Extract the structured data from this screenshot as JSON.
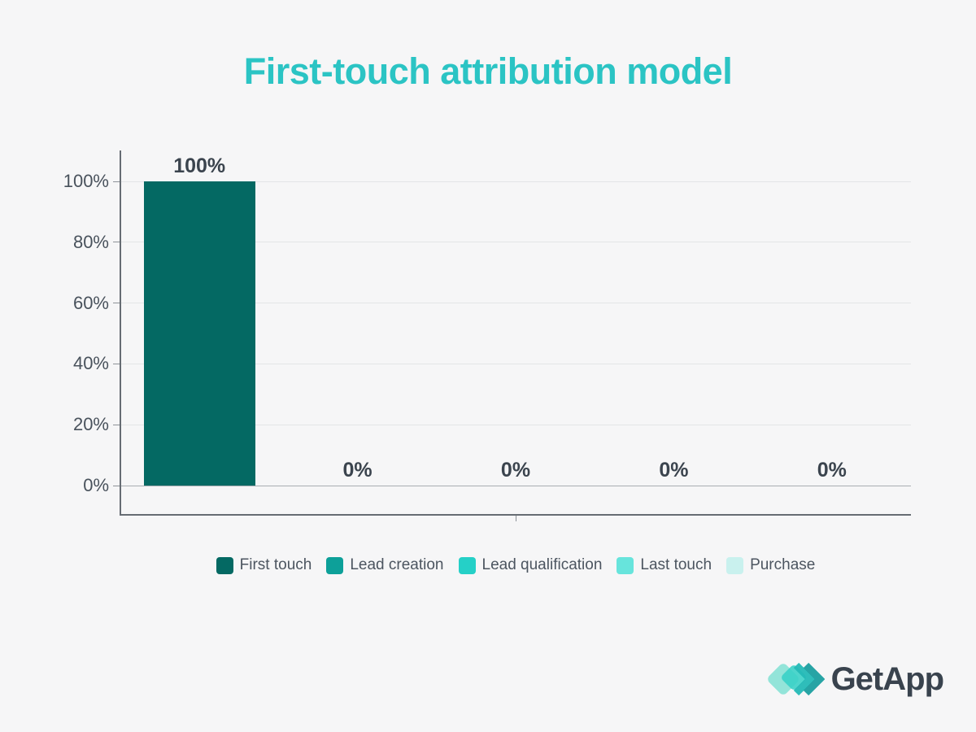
{
  "page": {
    "background": "#f6f6f7"
  },
  "header": {
    "title": "First-touch attribution model",
    "title_color": "#2bc4c4"
  },
  "chart_data": {
    "type": "bar",
    "title": "First-touch attribution model",
    "categories": [
      "First touch",
      "Lead creation",
      "Lead qualification",
      "Last touch",
      "Purchase"
    ],
    "values": [
      100,
      0,
      0,
      0,
      0
    ],
    "value_labels": [
      "100%",
      "0%",
      "0%",
      "0%",
      "0%"
    ],
    "series_colors": [
      "#046963",
      "#0da099",
      "#25d0c7",
      "#67e4dc",
      "#c9f1ee"
    ],
    "y_ticks": [
      {
        "value": 0,
        "label": "0%"
      },
      {
        "value": 20,
        "label": "20%"
      },
      {
        "value": 40,
        "label": "40%"
      },
      {
        "value": 60,
        "label": "60%"
      },
      {
        "value": 80,
        "label": "80%"
      },
      {
        "value": 100,
        "label": "100%"
      }
    ],
    "ylim": [
      0,
      100
    ],
    "xlabel": "",
    "ylabel": "",
    "grid": true,
    "legend_position": "bottom"
  },
  "legend": {
    "items": [
      {
        "label": "First touch",
        "color": "#046963"
      },
      {
        "label": "Lead creation",
        "color": "#0da099"
      },
      {
        "label": "Lead qualification",
        "color": "#25d0c7"
      },
      {
        "label": "Last touch",
        "color": "#67e4dc"
      },
      {
        "label": "Purchase",
        "color": "#c9f1ee"
      }
    ]
  },
  "footer": {
    "brand": "GetApp",
    "brand_text_color": "#39434e"
  }
}
